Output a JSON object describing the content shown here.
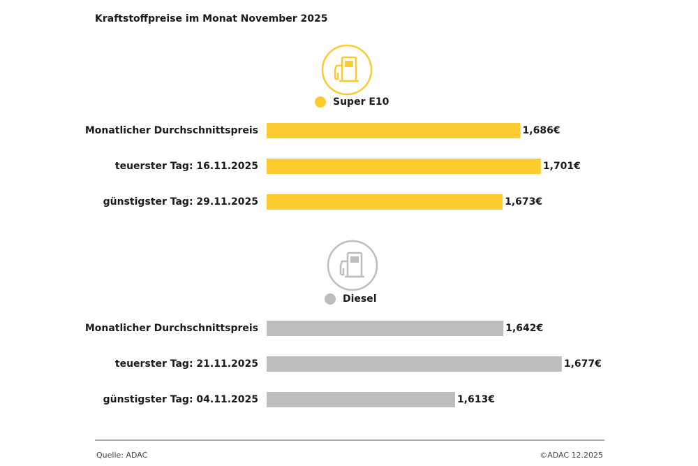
{
  "title": "Kraftstoffpreise im Monat November 2025",
  "source": "Quelle: ADAC",
  "copyright": "©ADAC 12.2025",
  "chart_data": [
    {
      "type": "bar",
      "orientation": "horizontal",
      "name": "Super E10",
      "color": "#fbcb2f",
      "categories": [
        "Monatlicher Durchschnittspreis",
        "teuerster Tag: 16.11.2025",
        "günstigster Tag: 29.11.2025"
      ],
      "values": [
        1.686,
        1.701,
        1.673
      ],
      "value_labels": [
        "1,686€",
        "1,701€",
        "1,673€"
      ],
      "xlim": [
        1.5,
        1.72
      ]
    },
    {
      "type": "bar",
      "orientation": "horizontal",
      "name": "Diesel",
      "color": "#bdbdbd",
      "categories": [
        "Monatlicher Durchschnittspreis",
        "teuerster Tag: 21.11.2025",
        "günstigster Tag: 04.11.2025"
      ],
      "values": [
        1.642,
        1.677,
        1.613
      ],
      "value_labels": [
        "1,642€",
        "1,677€",
        "1,613€"
      ],
      "xlim": [
        1.5,
        1.68
      ]
    }
  ]
}
